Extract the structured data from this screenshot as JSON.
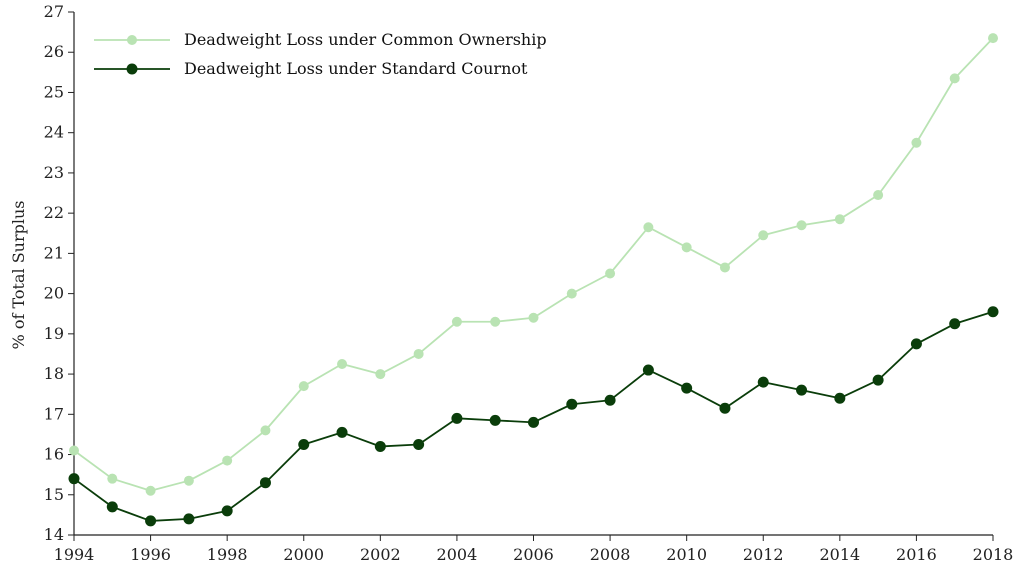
{
  "chart_data": {
    "type": "line",
    "title": "",
    "xlabel": "",
    "ylabel": "% of Total Surplus",
    "xlim": [
      1994,
      2018
    ],
    "ylim": [
      14,
      27
    ],
    "x_ticks": [
      "1994",
      "1996",
      "1998",
      "2000",
      "2002",
      "2004",
      "2006",
      "2008",
      "2010",
      "2012",
      "2014",
      "2016",
      "2018"
    ],
    "y_ticks": [
      "14",
      "15",
      "16",
      "17",
      "18",
      "19",
      "20",
      "21",
      "22",
      "23",
      "24",
      "25",
      "26",
      "27"
    ],
    "grid": false,
    "legend_position": "top-left",
    "x": [
      1994,
      1995,
      1996,
      1997,
      1998,
      1999,
      2000,
      2001,
      2002,
      2003,
      2004,
      2005,
      2006,
      2007,
      2008,
      2009,
      2010,
      2011,
      2012,
      2013,
      2014,
      2015,
      2016,
      2017,
      2018
    ],
    "series": [
      {
        "name": "Deadweight Loss under Common Ownership",
        "color": "#b9e3b3",
        "values": [
          16.1,
          15.4,
          15.1,
          15.35,
          15.85,
          16.6,
          17.7,
          18.25,
          18.0,
          18.5,
          19.3,
          19.3,
          19.4,
          20.0,
          20.5,
          21.65,
          21.15,
          20.65,
          21.45,
          21.7,
          21.85,
          22.45,
          23.75,
          25.35,
          26.35
        ]
      },
      {
        "name": "Deadweight Loss under Standard Cournot",
        "color": "#0a3d0a",
        "values": [
          15.4,
          14.7,
          14.35,
          14.4,
          14.6,
          15.3,
          16.25,
          16.55,
          16.2,
          16.25,
          16.9,
          16.85,
          16.8,
          17.25,
          17.35,
          18.1,
          17.65,
          17.15,
          17.8,
          17.6,
          17.4,
          17.85,
          18.75,
          19.25,
          19.55
        ]
      }
    ]
  }
}
